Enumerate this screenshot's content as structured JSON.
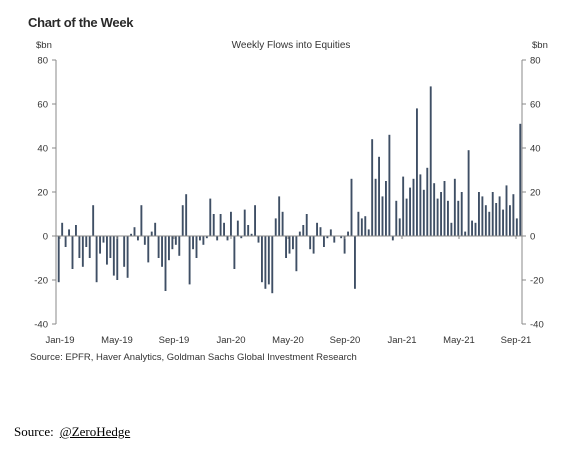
{
  "header": {
    "title": "Chart of the Week"
  },
  "chart_data": {
    "type": "bar",
    "title": "Weekly Flows into Equities",
    "ylabel_left": "$bn",
    "ylabel_right": "$bn",
    "ylim": [
      -40,
      80
    ],
    "yticks": [
      -40,
      -20,
      0,
      20,
      40,
      60,
      80
    ],
    "xtick_labels": [
      "Jan-19",
      "May-19",
      "Sep-19",
      "Jan-20",
      "May-20",
      "Sep-20",
      "Jan-21",
      "May-21",
      "Sep-21"
    ],
    "grid": false,
    "bar_color": "#3f4f65",
    "series": [
      {
        "values": [
          -21,
          6,
          -5,
          3,
          -15,
          5,
          -10,
          -14,
          -5,
          -10,
          14,
          -21,
          -8,
          -3,
          -13,
          -10,
          -18,
          -20,
          0,
          -14,
          -19,
          1,
          4,
          -2,
          14,
          -4,
          -12,
          2,
          6,
          -10,
          -14,
          -25,
          -11,
          -6,
          -4,
          -9,
          14,
          19,
          -22,
          -6,
          -10,
          -2,
          -4,
          -1,
          17,
          10,
          -2,
          10,
          6,
          -2,
          11,
          -15,
          7,
          -1,
          12,
          5,
          1,
          14,
          -3,
          -21,
          -24,
          -22,
          -26,
          8,
          18,
          11,
          -10,
          -8,
          -6,
          -16,
          2,
          5,
          10,
          -6,
          -8,
          6,
          4,
          -5,
          -1,
          3,
          -3,
          0,
          -1,
          -8,
          2,
          26,
          -24,
          11,
          8,
          9,
          3,
          44,
          26,
          36,
          18,
          25,
          46,
          -2,
          16,
          8,
          27,
          17,
          22,
          26,
          58,
          28,
          21,
          31,
          68,
          24,
          17,
          20,
          25,
          16,
          6,
          26,
          16,
          20,
          2,
          39,
          7,
          6,
          20,
          18,
          14,
          11,
          20,
          15,
          18,
          12,
          23,
          14,
          19,
          8,
          51
        ]
      }
    ]
  },
  "footer": {
    "source": "Source: EPFR, Haver Analytics, Goldman Sachs Global Investment Research"
  },
  "credit": {
    "label": "Source:",
    "handle": "@ZeroHedge"
  }
}
